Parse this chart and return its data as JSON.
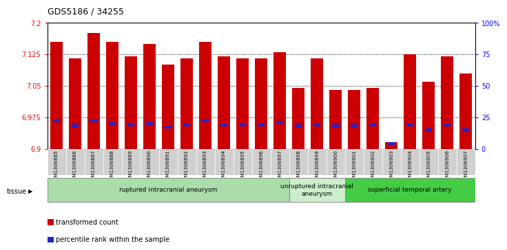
{
  "title": "GDS5186 / 34255",
  "samples": [
    "GSM1306885",
    "GSM1306886",
    "GSM1306887",
    "GSM1306888",
    "GSM1306889",
    "GSM1306890",
    "GSM1306891",
    "GSM1306892",
    "GSM1306893",
    "GSM1306894",
    "GSM1306895",
    "GSM1306896",
    "GSM1306897",
    "GSM1306898",
    "GSM1306899",
    "GSM1306900",
    "GSM1306901",
    "GSM1306902",
    "GSM1306903",
    "GSM1306904",
    "GSM1306905",
    "GSM1306906",
    "GSM1306907"
  ],
  "transformed_count": [
    7.155,
    7.115,
    7.175,
    7.155,
    7.12,
    7.15,
    7.1,
    7.115,
    7.155,
    7.12,
    7.115,
    7.115,
    7.13,
    7.045,
    7.115,
    7.04,
    7.04,
    7.045,
    6.915,
    7.125,
    7.06,
    7.12,
    7.08
  ],
  "percentile_rank": [
    22,
    18,
    22,
    20,
    19,
    20,
    17,
    19,
    22,
    19,
    19,
    19,
    21,
    18,
    19,
    18,
    18,
    19,
    4,
    19,
    15,
    19,
    15
  ],
  "ylim_left": [
    6.9,
    7.2
  ],
  "ylim_right": [
    0,
    100
  ],
  "yticks_left": [
    6.9,
    6.975,
    7.05,
    7.125,
    7.2
  ],
  "yticks_left_labels": [
    "6.9",
    "6.975",
    "7.05",
    "7.125",
    "7.2"
  ],
  "yticks_right": [
    0,
    25,
    50,
    75,
    100
  ],
  "yticks_right_labels": [
    "0",
    "25",
    "50",
    "75",
    "100%"
  ],
  "bar_color": "#cc0000",
  "percentile_color": "#2222cc",
  "plot_bg": "#ffffff",
  "fig_bg": "#ffffff",
  "tick_bg": "#d0d0d0",
  "groups": [
    {
      "label": "ruptured intracranial aneurysm",
      "start": 0,
      "end": 13,
      "color": "#aaddaa"
    },
    {
      "label": "unruptured intracranial\naneurysm",
      "start": 13,
      "end": 16,
      "color": "#cceecc"
    },
    {
      "label": "superficial temporal artery",
      "start": 16,
      "end": 23,
      "color": "#44cc44"
    }
  ],
  "tissue_label": "tissue",
  "legend_red": "transformed count",
  "legend_blue": "percentile rank within the sample"
}
